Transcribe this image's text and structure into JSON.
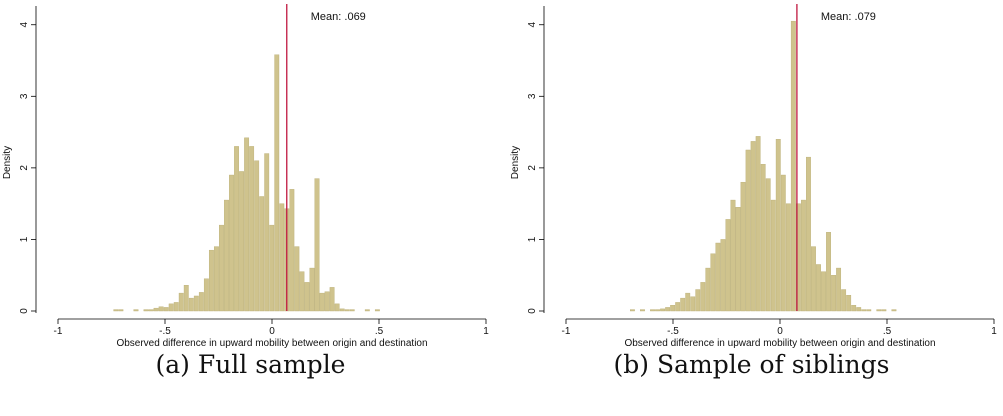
{
  "colors": {
    "bar_fill": "#cfc38d",
    "bar_stroke": "#b9ad74",
    "mean_line": "#c0173f",
    "axis": "#000000"
  },
  "chart_data": [
    {
      "type": "bar",
      "mean_label": "Mean: .069",
      "mean_value": 0.069,
      "xlabel": "Observed difference in upward mobility between origin and destination",
      "ylabel": "Density",
      "xlim": [
        -1,
        1
      ],
      "ylim": [
        0,
        4.15
      ],
      "xticks": [
        {
          "v": -1,
          "label": "-1"
        },
        {
          "v": -0.5,
          "label": "-.5"
        },
        {
          "v": 0,
          "label": "0"
        },
        {
          "v": 0.5,
          "label": ".5"
        },
        {
          "v": 1,
          "label": "1"
        }
      ],
      "yticks": [
        {
          "v": 0,
          "label": "0"
        },
        {
          "v": 1,
          "label": "1"
        },
        {
          "v": 2,
          "label": "2"
        },
        {
          "v": 3,
          "label": "3"
        },
        {
          "v": 4,
          "label": "4"
        }
      ],
      "bin_start": -0.74,
      "bin_width": 0.0235,
      "values": [
        0.02,
        0.02,
        0.0,
        0.0,
        0.02,
        0.0,
        0.02,
        0.02,
        0.04,
        0.06,
        0.05,
        0.1,
        0.12,
        0.25,
        0.36,
        0.18,
        0.21,
        0.26,
        0.45,
        0.85,
        0.9,
        1.2,
        1.55,
        1.9,
        2.3,
        1.95,
        2.42,
        2.3,
        2.1,
        1.6,
        2.2,
        1.2,
        3.58,
        1.5,
        1.43,
        1.7,
        0.9,
        0.55,
        0.4,
        0.6,
        1.85,
        0.25,
        0.27,
        0.33,
        0.1,
        0.03,
        0.02,
        0.02,
        0.0,
        0.0,
        0.02,
        0.0,
        0.02,
        0.0
      ],
      "caption": "(a) Full sample"
    },
    {
      "type": "bar",
      "mean_label": "Mean: .079",
      "mean_value": 0.079,
      "xlabel": "Observed difference in upward mobility between origin and destination",
      "ylabel": "Density",
      "xlim": [
        -1,
        1
      ],
      "ylim": [
        0,
        4.15
      ],
      "xticks": [
        {
          "v": -1,
          "label": "-1"
        },
        {
          "v": -0.5,
          "label": "-.5"
        },
        {
          "v": 0,
          "label": "0"
        },
        {
          "v": 0.5,
          "label": ".5"
        },
        {
          "v": 1,
          "label": "1"
        }
      ],
      "yticks": [
        {
          "v": 0,
          "label": "0"
        },
        {
          "v": 1,
          "label": "1"
        },
        {
          "v": 2,
          "label": "2"
        },
        {
          "v": 3,
          "label": "3"
        },
        {
          "v": 4,
          "label": "4"
        }
      ],
      "bin_start": -0.7,
      "bin_width": 0.0235,
      "values": [
        0.02,
        0.0,
        0.02,
        0.0,
        0.02,
        0.02,
        0.03,
        0.05,
        0.08,
        0.12,
        0.18,
        0.25,
        0.2,
        0.3,
        0.4,
        0.6,
        0.8,
        0.95,
        1.0,
        1.28,
        1.55,
        1.45,
        1.8,
        2.25,
        2.37,
        2.44,
        2.05,
        1.85,
        1.55,
        2.4,
        1.9,
        1.5,
        4.05,
        1.5,
        1.55,
        2.15,
        0.9,
        0.65,
        0.55,
        1.1,
        0.5,
        0.6,
        0.3,
        0.22,
        0.08,
        0.05,
        0.02,
        0.02,
        0.0,
        0.02,
        0.02,
        0.0,
        0.02,
        0.0
      ],
      "caption": "(b) Sample of siblings"
    }
  ]
}
